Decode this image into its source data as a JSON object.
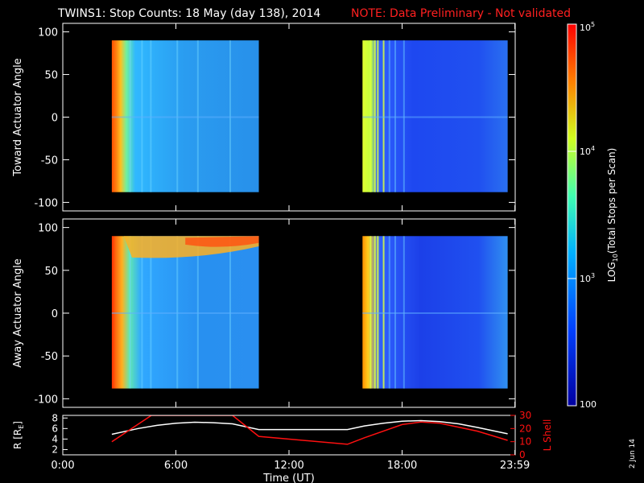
{
  "header": {
    "title": "TWINS1: Stop Counts: 18 May (day 138), 2014",
    "note": "NOTE: Data Preliminary - Not validated",
    "note_color": "#ff2020"
  },
  "footer": {
    "date_stamp": "2 Jun 14"
  },
  "chart_data": [
    {
      "type": "heatmap",
      "ylabel": "Toward Actuator Angle",
      "ylim": [
        -110,
        110
      ],
      "yticks": [
        100,
        50,
        0,
        -50,
        -100
      ],
      "yticklabels": [
        "100",
        "50",
        "0",
        "-50",
        "-100"
      ],
      "data_blocks": [
        {
          "t_start": 2.6,
          "t_end": 10.4,
          "angle_min": -88,
          "angle_max": 90
        },
        {
          "t_start": 15.9,
          "t_end": 23.6,
          "angle_min": -88,
          "angle_max": 90
        }
      ]
    },
    {
      "type": "heatmap",
      "ylabel": "Away Actuator Angle",
      "ylim": [
        -110,
        110
      ],
      "yticks": [
        100,
        50,
        0,
        -50,
        -100
      ],
      "yticklabels": [
        "100",
        "50",
        "0",
        "-50",
        "-100"
      ],
      "data_blocks": [
        {
          "t_start": 2.6,
          "t_end": 10.4,
          "angle_min": -88,
          "angle_max": 90
        },
        {
          "t_start": 15.9,
          "t_end": 23.6,
          "angle_min": -88,
          "angle_max": 90
        }
      ]
    },
    {
      "type": "line",
      "ylabel": "R [R",
      "ylabel_sub": "E",
      "ylabel_close": "]",
      "ylim": [
        1,
        8.5
      ],
      "yticks": [
        2,
        4,
        6,
        8
      ],
      "yticklabels": [
        "2",
        "4",
        "6",
        "8"
      ],
      "y2label": "L Shell",
      "y2lim": [
        0,
        30
      ],
      "y2ticks": [
        0,
        10,
        20,
        30
      ],
      "y2ticklabels": [
        "0",
        "10",
        "20",
        "30"
      ],
      "xlabel": "Time (UT)",
      "xlim": [
        0,
        24
      ],
      "xticks": [
        0,
        6,
        12,
        18,
        23.983
      ],
      "xticklabels": [
        "0:00",
        "6:00",
        "12:00",
        "18:00",
        "23:59"
      ],
      "series": [
        {
          "color": "#ffffff",
          "axis": "left",
          "x": [
            2.6,
            4,
            5,
            6,
            7,
            8,
            9,
            10.4,
            15.1,
            16,
            17,
            18,
            19,
            20,
            21,
            22,
            23.6
          ],
          "y": [
            4.9,
            6.0,
            6.6,
            7.0,
            7.2,
            7.1,
            6.9,
            5.8,
            5.8,
            6.5,
            7.0,
            7.4,
            7.5,
            7.3,
            6.9,
            6.2,
            5.0
          ]
        },
        {
          "color": "#ff1010",
          "axis": "right",
          "x": [
            2.6,
            4.7,
            9,
            10.4,
            15.1,
            16,
            18,
            19,
            20,
            22,
            23.6
          ],
          "y": [
            10,
            30,
            30,
            14,
            8,
            13,
            23,
            25,
            24,
            18,
            11
          ]
        }
      ]
    }
  ],
  "colorbar": {
    "label": "LOG",
    "label_sub": "10",
    "label_rest": "(Total Stops per Scan)",
    "scale": "log",
    "range": [
      100,
      100000
    ],
    "ticks": [
      {
        "value": 100000,
        "base": "10",
        "exp": "5"
      },
      {
        "value": 10000,
        "base": "10",
        "exp": "4"
      },
      {
        "value": 1000,
        "base": "10",
        "exp": "3"
      },
      {
        "value": 100,
        "base": "100",
        "exp": ""
      }
    ]
  }
}
